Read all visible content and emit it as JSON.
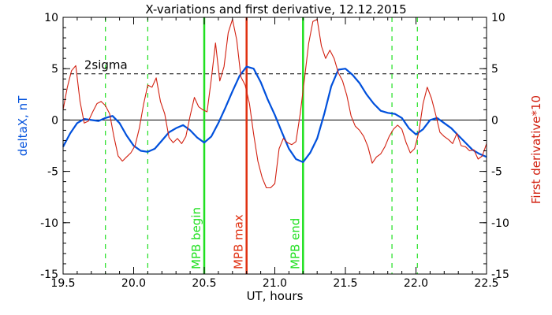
{
  "chart_data": {
    "type": "line",
    "title": "X-variations and first derivative, 12.12.2015",
    "xlabel": "UT, hours",
    "ylabel_left": "deltaX, nT",
    "ylabel_right": "First derivative*10",
    "xlim": [
      19.5,
      22.5
    ],
    "ylim_left": [
      -15,
      10
    ],
    "ylim_right": [
      -15,
      10
    ],
    "x_ticks": [
      "19.5",
      "20.0",
      "20.5",
      "21.0",
      "21.5",
      "22.0",
      "22.5"
    ],
    "y_ticks_left": [
      "10",
      "5",
      "0",
      "-5",
      "-10",
      "-15"
    ],
    "y_ticks_right": [
      "10",
      "5",
      "0",
      "-5",
      "-10",
      "-15"
    ],
    "colors": {
      "deltaX": "#0050dc",
      "derivative": "#d22010",
      "green": "#20e020",
      "red": "#e03010",
      "black": "#000000"
    },
    "threshold": {
      "label": "2sigma",
      "value": 4.5
    },
    "zero_line": 0,
    "vlines": [
      {
        "x": 20.5,
        "label": "MPB begin",
        "color": "#20e020",
        "style": "solid"
      },
      {
        "x": 20.8,
        "label": "MPB max",
        "color": "#e03010",
        "style": "solid"
      },
      {
        "x": 21.2,
        "label": "MPB end",
        "color": "#20e020",
        "style": "solid"
      },
      {
        "x": 19.8,
        "label": "",
        "color": "#20e020",
        "style": "dashed"
      },
      {
        "x": 20.1,
        "label": "",
        "color": "#20e020",
        "style": "dashed"
      },
      {
        "x": 21.83,
        "label": "",
        "color": "#20e020",
        "style": "dashed"
      },
      {
        "x": 22.01,
        "label": "",
        "color": "#20e020",
        "style": "dashed"
      }
    ],
    "series": [
      {
        "key": "deltaX",
        "axis": "left",
        "color": "#0050dc",
        "x": [
          19.5,
          19.55,
          19.6,
          19.65,
          19.7,
          19.75,
          19.8,
          19.85,
          19.9,
          19.95,
          20.0,
          20.05,
          20.1,
          20.15,
          20.2,
          20.25,
          20.3,
          20.35,
          20.4,
          20.45,
          20.5,
          20.55,
          20.6,
          20.65,
          20.7,
          20.75,
          20.8,
          20.85,
          20.9,
          20.95,
          21.0,
          21.05,
          21.1,
          21.15,
          21.2,
          21.25,
          21.3,
          21.35,
          21.4,
          21.45,
          21.5,
          21.55,
          21.6,
          21.65,
          21.7,
          21.75,
          21.8,
          21.85,
          21.9,
          21.95,
          22.0,
          22.05,
          22.1,
          22.15,
          22.2,
          22.25,
          22.3,
          22.35,
          22.4,
          22.45,
          22.5
        ],
        "y": [
          -2.6,
          -1.3,
          -0.3,
          0.1,
          0.0,
          -0.1,
          0.2,
          0.4,
          -0.3,
          -1.5,
          -2.5,
          -3.0,
          -3.1,
          -2.8,
          -2.0,
          -1.2,
          -0.8,
          -0.5,
          -1.0,
          -1.7,
          -2.2,
          -1.6,
          -0.3,
          1.2,
          2.8,
          4.3,
          5.2,
          5.0,
          3.7,
          2.0,
          0.5,
          -1.2,
          -2.8,
          -3.8,
          -4.1,
          -3.2,
          -1.8,
          0.6,
          3.3,
          4.9,
          5.0,
          4.4,
          3.6,
          2.5,
          1.6,
          0.9,
          0.7,
          0.6,
          0.2,
          -0.8,
          -1.4,
          -0.9,
          0.0,
          0.2,
          -0.3,
          -0.8,
          -1.5,
          -2.2,
          -2.9,
          -3.3,
          -3.6
        ]
      },
      {
        "key": "derivative",
        "axis": "right",
        "color": "#d22010",
        "x": [
          19.5,
          19.53,
          19.56,
          19.59,
          19.62,
          19.65,
          19.68,
          19.71,
          19.74,
          19.77,
          19.8,
          19.83,
          19.86,
          19.89,
          19.92,
          19.95,
          19.98,
          20.01,
          20.04,
          20.07,
          20.1,
          20.13,
          20.16,
          20.19,
          20.22,
          20.25,
          20.28,
          20.31,
          20.34,
          20.37,
          20.4,
          20.43,
          20.46,
          20.49,
          20.52,
          20.55,
          20.58,
          20.61,
          20.64,
          20.67,
          20.7,
          20.73,
          20.76,
          20.79,
          20.82,
          20.85,
          20.88,
          20.91,
          20.94,
          20.97,
          21.0,
          21.03,
          21.06,
          21.09,
          21.12,
          21.15,
          21.18,
          21.21,
          21.24,
          21.27,
          21.3,
          21.33,
          21.36,
          21.39,
          21.42,
          21.45,
          21.48,
          21.51,
          21.54,
          21.57,
          21.6,
          21.63,
          21.66,
          21.69,
          21.72,
          21.75,
          21.78,
          21.81,
          21.84,
          21.87,
          21.9,
          21.93,
          21.96,
          21.99,
          22.02,
          22.05,
          22.08,
          22.11,
          22.14,
          22.17,
          22.2,
          22.23,
          22.26,
          22.29,
          22.32,
          22.35,
          22.38,
          22.41,
          22.44,
          22.47,
          22.5
        ],
        "y": [
          1.0,
          3.2,
          4.8,
          5.3,
          1.8,
          -0.3,
          -0.1,
          0.8,
          1.6,
          1.8,
          1.4,
          0.6,
          -1.6,
          -3.5,
          -4.0,
          -3.6,
          -3.2,
          -2.5,
          -0.8,
          1.5,
          3.4,
          3.2,
          4.1,
          1.8,
          0.6,
          -1.7,
          -2.2,
          -1.8,
          -2.3,
          -1.6,
          0.4,
          2.2,
          1.3,
          1.0,
          0.8,
          4.0,
          7.5,
          3.8,
          5.2,
          8.5,
          9.8,
          7.8,
          4.2,
          3.4,
          1.6,
          -1.4,
          -4.0,
          -5.6,
          -6.6,
          -6.6,
          -6.2,
          -2.8,
          -1.8,
          -2.2,
          -2.4,
          -2.1,
          0.6,
          4.0,
          7.5,
          9.6,
          9.8,
          7.2,
          6.0,
          6.8,
          6.0,
          4.6,
          3.8,
          2.4,
          0.4,
          -0.6,
          -1.0,
          -1.6,
          -2.6,
          -4.2,
          -3.6,
          -3.3,
          -2.6,
          -1.6,
          -0.9,
          -0.5,
          -0.9,
          -2.2,
          -3.2,
          -2.8,
          -1.2,
          1.6,
          3.2,
          2.1,
          0.5,
          -1.2,
          -1.6,
          -1.9,
          -2.3,
          -1.3,
          -2.5,
          -2.6,
          -3.0,
          -2.9,
          -3.8,
          -3.5,
          -2.3
        ]
      }
    ]
  }
}
